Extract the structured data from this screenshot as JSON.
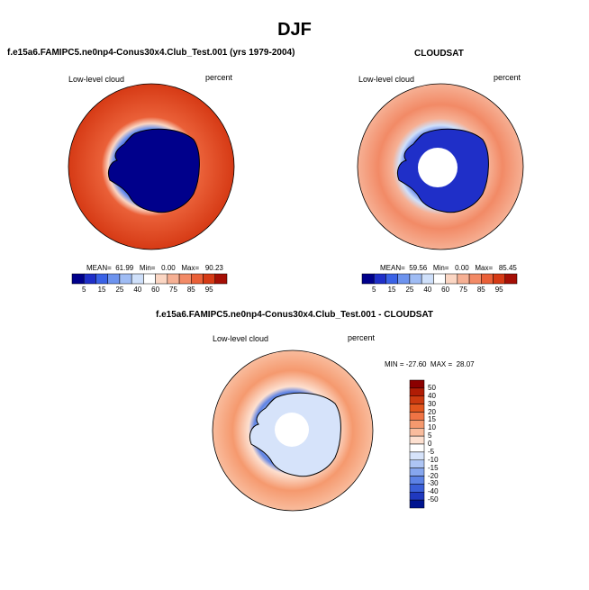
{
  "season_title": "DJF",
  "panels": [
    {
      "id": "model",
      "title": "f.e15a6.FAMIPC5.ne0np4-Conus30x4.Club_Test.001 (yrs 1979-2004)",
      "left_label": "Low-level cloud",
      "right_label": "percent",
      "stats": "MEAN=  61.99   Min=   0.00   Max=   90.23"
    },
    {
      "id": "obs",
      "title": "CLOUDSAT",
      "left_label": "Low-level cloud",
      "right_label": "percent",
      "stats": "MEAN=  59.56   Min=   0.00   Max=   85.45"
    },
    {
      "id": "diff",
      "title": "f.e15a6.FAMIPC5.ne0np4-Conus30x4.Club_Test.001 - CLOUDSAT",
      "left_label": "Low-level cloud",
      "right_label": "percent",
      "stats": "MIN = -27.60  MAX =  28.07"
    }
  ],
  "colorbar_abs": {
    "colors": [
      "#00008b",
      "#1f2fc8",
      "#3a62e6",
      "#6d93ee",
      "#9fbcf4",
      "#cfe0fa",
      "#ffffff",
      "#fbd6c3",
      "#f6b094",
      "#f28a66",
      "#ea6038",
      "#d63a15",
      "#a50f05"
    ],
    "labels": [
      "5",
      "15",
      "25",
      "40",
      "60",
      "75",
      "85",
      "95"
    ]
  },
  "colorbar_diff": {
    "colors": [
      "#8b0000",
      "#b01c05",
      "#cc3a10",
      "#e2561e",
      "#ef7445",
      "#f5996e",
      "#f9bc9d",
      "#fde0d0",
      "#ffffff",
      "#d6e3fa",
      "#aec5f4",
      "#86a6ee",
      "#5c82e5",
      "#3a5fd8",
      "#2039bf",
      "#00148f"
    ],
    "labels": [
      "50",
      "40",
      "30",
      "20",
      "15",
      "10",
      "5",
      "0",
      "-5",
      "-10",
      "-15",
      "-20",
      "-30",
      "-40",
      "-50"
    ]
  }
}
